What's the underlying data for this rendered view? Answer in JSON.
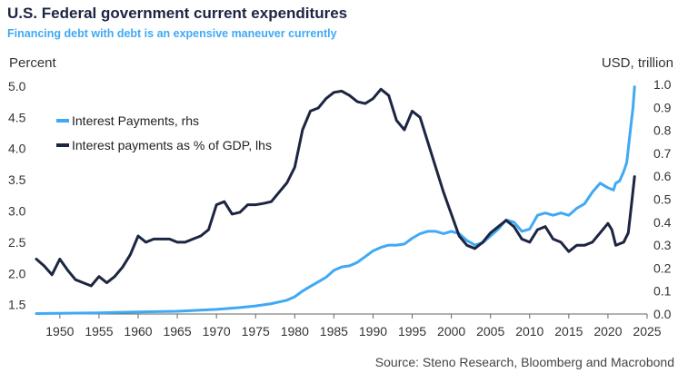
{
  "chart_data": {
    "type": "line",
    "title": "U.S. Federal government current expenditures",
    "subtitle": "Financing debt with debt is an expensive maneuver currently",
    "ylabel_left": "Percent",
    "ylabel_right": "USD, trillion",
    "source": "Source: Steno Research, Bloomberg and Macrobond",
    "xlim": [
      1947,
      2025
    ],
    "ylim_left": [
      1.35,
      5.1
    ],
    "ylim_right": [
      0.0,
      1.02
    ],
    "x_ticks": [
      "1950",
      "1955",
      "1960",
      "1965",
      "1970",
      "1975",
      "1980",
      "1985",
      "1990",
      "1995",
      "2000",
      "2005",
      "2010",
      "2015",
      "2020",
      "2025"
    ],
    "y_ticks_left": [
      "1.5",
      "2.0",
      "2.5",
      "3.0",
      "3.5",
      "4.0",
      "4.5",
      "5.0"
    ],
    "y_ticks_right": [
      "0.0",
      "0.1",
      "0.2",
      "0.3",
      "0.4",
      "0.5",
      "0.6",
      "0.7",
      "0.8",
      "0.9",
      "1.0"
    ],
    "colors": {
      "interest_payments": "#3fa9f5",
      "pct_gdp": "#1c2541"
    },
    "series": [
      {
        "name": "Interest Payments, rhs",
        "axis": "right",
        "x": [
          1947,
          1955,
          1960,
          1965,
          1970,
          1973,
          1975,
          1977,
          1979,
          1980,
          1981,
          1982,
          1983,
          1984,
          1985,
          1986,
          1987,
          1988,
          1989,
          1990,
          1991,
          1992,
          1993,
          1994,
          1995,
          1996,
          1997,
          1998,
          1999,
          2000,
          2001,
          2002,
          2003,
          2004,
          2005,
          2006,
          2007,
          2008,
          2009,
          2010,
          2011,
          2012,
          2013,
          2014,
          2015,
          2016,
          2017,
          2018,
          2019,
          2020,
          2020.7,
          2021,
          2021.5,
          2022,
          2022.4,
          2022.8,
          2023.2,
          2023.4
        ],
        "values": [
          0.002,
          0.005,
          0.009,
          0.012,
          0.02,
          0.028,
          0.035,
          0.045,
          0.06,
          0.075,
          0.1,
          0.12,
          0.14,
          0.16,
          0.19,
          0.205,
          0.21,
          0.225,
          0.25,
          0.275,
          0.29,
          0.3,
          0.3,
          0.305,
          0.33,
          0.35,
          0.36,
          0.36,
          0.35,
          0.36,
          0.35,
          0.32,
          0.3,
          0.31,
          0.34,
          0.37,
          0.41,
          0.4,
          0.36,
          0.37,
          0.43,
          0.44,
          0.43,
          0.44,
          0.43,
          0.46,
          0.48,
          0.53,
          0.57,
          0.55,
          0.54,
          0.57,
          0.58,
          0.62,
          0.66,
          0.78,
          0.9,
          0.99
        ]
      },
      {
        "name": "Interest payments as % of GDP, lhs",
        "axis": "left",
        "x": [
          1947,
          1948,
          1949,
          1950,
          1951,
          1952,
          1953,
          1954,
          1955,
          1956,
          1957,
          1958,
          1959,
          1960,
          1961,
          1962,
          1963,
          1964,
          1965,
          1966,
          1967,
          1968,
          1969,
          1970,
          1971,
          1972,
          1973,
          1974,
          1975,
          1976,
          1977,
          1978,
          1979,
          1980,
          1981,
          1982,
          1983,
          1984,
          1985,
          1986,
          1987,
          1988,
          1989,
          1990,
          1991,
          1992,
          1993,
          1994,
          1995,
          1996,
          1997,
          1998,
          1999,
          2000,
          2001,
          2002,
          2003,
          2004,
          2005,
          2006,
          2007,
          2008,
          2009,
          2010,
          2011,
          2012,
          2013,
          2014,
          2015,
          2016,
          2017,
          2018,
          2019,
          2020,
          2020.5,
          2021,
          2022,
          2022.6,
          2023,
          2023.4
        ],
        "values": [
          2.23,
          2.12,
          1.98,
          2.23,
          2.05,
          1.9,
          1.85,
          1.8,
          1.95,
          1.85,
          1.95,
          2.1,
          2.3,
          2.6,
          2.5,
          2.55,
          2.55,
          2.55,
          2.5,
          2.5,
          2.55,
          2.6,
          2.7,
          3.1,
          3.15,
          2.95,
          2.98,
          3.1,
          3.1,
          3.12,
          3.15,
          3.3,
          3.45,
          3.7,
          4.3,
          4.6,
          4.65,
          4.8,
          4.9,
          4.92,
          4.85,
          4.75,
          4.72,
          4.8,
          4.95,
          4.85,
          4.45,
          4.3,
          4.6,
          4.5,
          4.1,
          3.7,
          3.3,
          2.95,
          2.6,
          2.45,
          2.4,
          2.5,
          2.65,
          2.75,
          2.85,
          2.75,
          2.55,
          2.5,
          2.7,
          2.75,
          2.55,
          2.5,
          2.35,
          2.45,
          2.45,
          2.5,
          2.65,
          2.8,
          2.7,
          2.45,
          2.5,
          2.65,
          3.1,
          3.55
        ]
      }
    ]
  }
}
